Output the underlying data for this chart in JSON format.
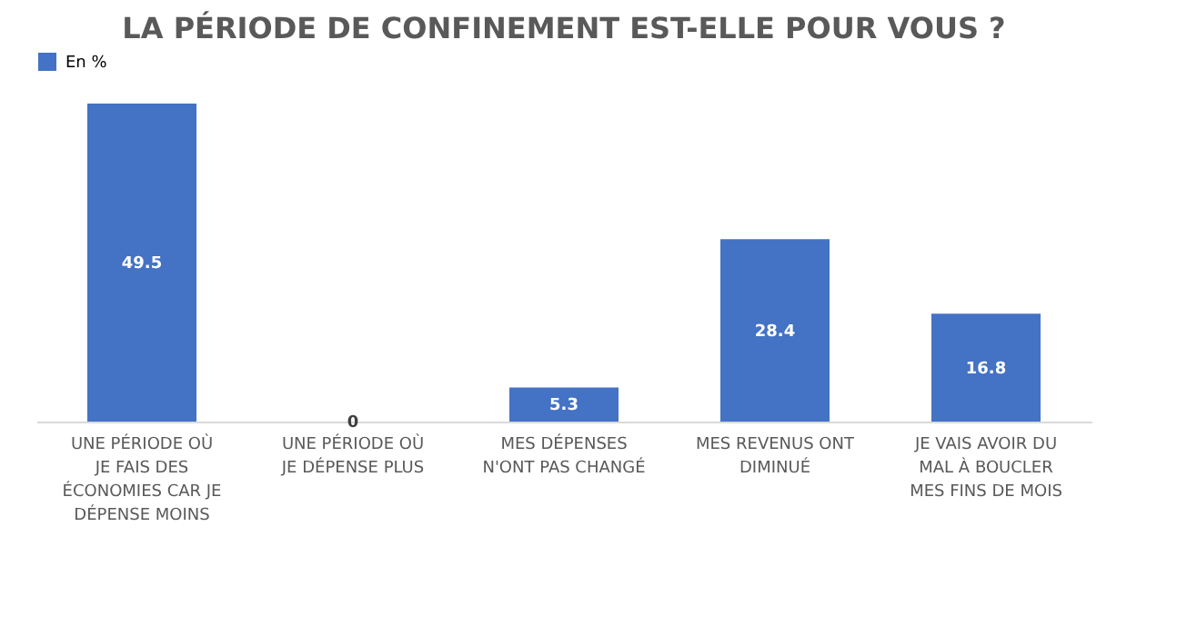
{
  "chart_data": {
    "type": "bar",
    "title": "LA PÉRIODE DE CONFINEMENT EST-ELLE POUR VOUS ?",
    "categories": [
      "UNE PÉRIODE OÙ JE FAIS DES ÉCONOMIES CAR JE DÉPENSE MOINS",
      "UNE PÉRIODE OÙ JE DÉPENSE PLUS",
      "MES DÉPENSES N'ONT PAS CHANGÉ",
      "MES REVENUS ONT DIMINUÉ",
      "JE VAIS AVOIR DU MAL À BOUCLER MES FINS DE MOIS"
    ],
    "series": [
      {
        "name": "En %",
        "color": "#4472c4",
        "values": [
          49.5,
          0,
          5.3,
          28.4,
          16.8
        ]
      }
    ],
    "data_labels": true,
    "legend": "top",
    "grid": false
  }
}
